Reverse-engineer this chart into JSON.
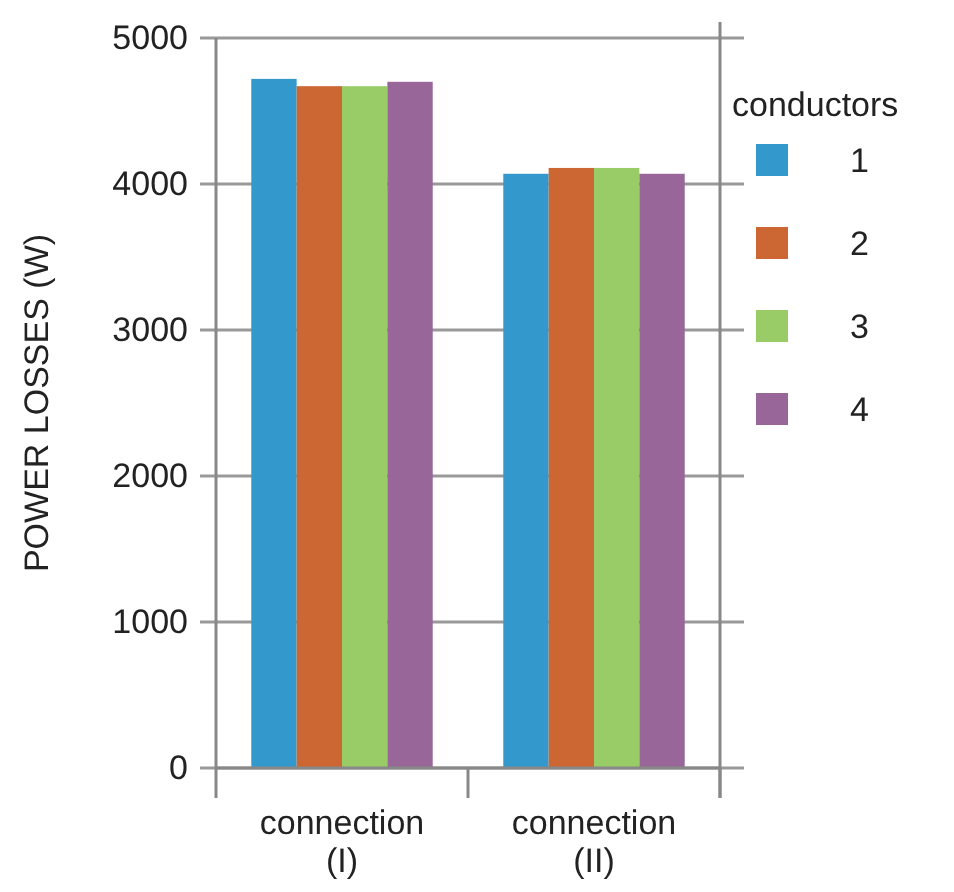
{
  "chart_data": {
    "type": "bar",
    "ylabel": "POWER LOSSES (W)",
    "categories": [
      "connection\n(I)",
      "connection\n(II)"
    ],
    "series": [
      {
        "name": "1",
        "color": "#3399cc",
        "values": [
          4720,
          4070
        ]
      },
      {
        "name": "2",
        "color": "#cc6633",
        "values": [
          4670,
          4110
        ]
      },
      {
        "name": "3",
        "color": "#99cc66",
        "values": [
          4670,
          4110
        ]
      },
      {
        "name": "4",
        "color": "#996699",
        "values": [
          4700,
          4070
        ]
      }
    ],
    "ylim": [
      0,
      5000
    ],
    "yticks": [
      0,
      1000,
      2000,
      3000,
      4000,
      5000
    ],
    "grid": "y",
    "legend": "right",
    "legend_title": "conductors"
  }
}
